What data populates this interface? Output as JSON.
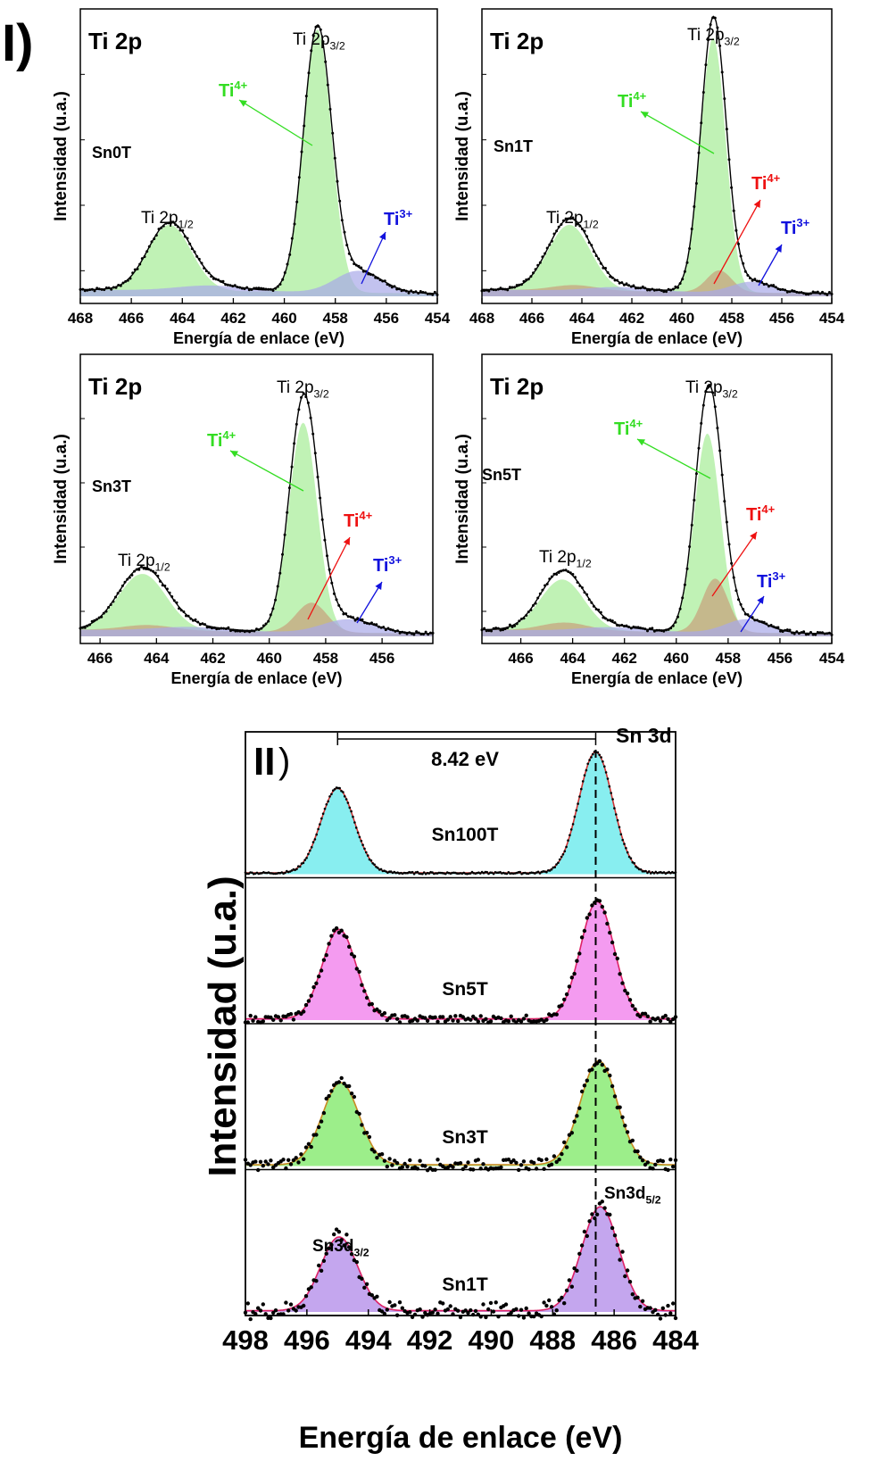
{
  "figure": {
    "section_I_label": "I)",
    "section_II_label": "II",
    "section_II_paren": ")"
  },
  "colors": {
    "ti4_green_fill": "#b5f0a8",
    "ti4_green_text": "#33dd22",
    "ti4_red": "#ee1111",
    "ti4_brown_fill": "#c8a07a",
    "ti3_blue": "#1111dd",
    "ti3_blue_fill": "#a8a8e8",
    "sn100t_fill": "#88eef0",
    "sn5t_fill": "#f49bf0",
    "sn3t_fill": "#9cee8a",
    "sn1t_fill": "#c4a6ee"
  },
  "chart_data": [
    {
      "type": "line",
      "panel": "Sn0T",
      "title": "Ti 2p",
      "sample": "Sn0T",
      "xlabel": "Energía de enlace (eV)",
      "ylabel": "Intensidad (u.a.)",
      "xlim": [
        468,
        454
      ],
      "xticks": [
        468,
        466,
        464,
        462,
        460,
        458,
        456,
        454
      ],
      "ylim": [
        0,
        1.05
      ],
      "peak_labels": [
        "Ti 2p",
        "1/2",
        "Ti 2p",
        "3/2"
      ],
      "components": [
        {
          "name": "Ti4+",
          "centers": [
            464.5,
            458.7
          ],
          "heights": [
            0.24,
            0.96
          ],
          "widths": [
            0.85,
            0.55
          ],
          "color": "ti4_green_fill"
        },
        {
          "name": "Ti3+",
          "centers": [
            462.9,
            457.1
          ],
          "heights": [
            0.02,
            0.08
          ],
          "widths": [
            1.3,
            0.9
          ],
          "color": "ti3_blue_fill"
        }
      ],
      "annotations": [
        {
          "label": "Ti",
          "sup": "4+",
          "color": "ti4_green_text"
        },
        {
          "label": "Ti",
          "sup": "3+",
          "color": "ti3_blue"
        }
      ]
    },
    {
      "type": "line",
      "panel": "Sn1T",
      "title": "Ti 2p",
      "sample": "Sn1T",
      "xlabel": "Energía de enlace (eV)",
      "ylabel": "Intensidad (u.a.)",
      "xlim": [
        468,
        454
      ],
      "xticks": [
        468,
        466,
        464,
        462,
        460,
        458,
        456,
        454
      ],
      "ylim": [
        0,
        1.05
      ],
      "peak_labels": [
        "Ti 2p",
        "1/2",
        "Ti 2p",
        "3/2"
      ],
      "components": [
        {
          "name": "Ti4+",
          "centers": [
            464.5,
            458.75
          ],
          "heights": [
            0.24,
            0.93
          ],
          "widths": [
            0.85,
            0.5
          ],
          "color": "ti4_green_fill"
        },
        {
          "name": "Ti4+ (2)",
          "centers": [
            464.3,
            458.5
          ],
          "heights": [
            0.02,
            0.08
          ],
          "widths": [
            0.9,
            0.5
          ],
          "color": "ti4_brown_fill"
        },
        {
          "name": "Ti3+",
          "centers": [
            462.5,
            457.2
          ],
          "heights": [
            0.015,
            0.04
          ],
          "widths": [
            1.2,
            0.8
          ],
          "color": "ti3_blue_fill"
        }
      ],
      "annotations": [
        {
          "label": "Ti",
          "sup": "4+",
          "color": "ti4_green_text"
        },
        {
          "label": "Ti",
          "sup": "4+",
          "color": "ti4_red"
        },
        {
          "label": "Ti",
          "sup": "3+",
          "color": "ti3_blue"
        }
      ]
    },
    {
      "type": "line",
      "panel": "Sn3T",
      "title": "Ti 2p",
      "sample": "Sn3T",
      "xlabel": "Energía de enlace (eV)",
      "ylabel": "Intensidad (u.a.)",
      "xlim": [
        466.7,
        454.2
      ],
      "xticks": [
        466,
        464,
        462,
        460,
        458,
        456
      ],
      "ylim": [
        0,
        1.05
      ],
      "peak_labels": [
        "Ti 2p",
        "1/2",
        "Ti 2p",
        "3/2"
      ],
      "components": [
        {
          "name": "Ti4+",
          "centers": [
            464.5,
            458.8
          ],
          "heights": [
            0.21,
            0.78
          ],
          "widths": [
            0.85,
            0.5
          ],
          "color": "ti4_green_fill"
        },
        {
          "name": "Ti4+ (2)",
          "centers": [
            464.3,
            458.5
          ],
          "heights": [
            0.02,
            0.11
          ],
          "widths": [
            0.9,
            0.55
          ],
          "color": "ti4_brown_fill"
        },
        {
          "name": "Ti3+",
          "centers": [
            462.8,
            457.2
          ],
          "heights": [
            0.015,
            0.05
          ],
          "widths": [
            1.2,
            0.9
          ],
          "color": "ti3_blue_fill"
        }
      ],
      "annotations": [
        {
          "label": "Ti",
          "sup": "4+",
          "color": "ti4_green_text"
        },
        {
          "label": "Ti",
          "sup": "4+",
          "color": "ti4_red"
        },
        {
          "label": "Ti",
          "sup": "3+",
          "color": "ti3_blue"
        }
      ]
    },
    {
      "type": "line",
      "panel": "Sn5T",
      "title": "Ti 2p",
      "sample": "Sn5T",
      "xlabel": "Energía de enlace (eV)",
      "ylabel": "Intensidad (u.a.)",
      "xlim": [
        467.5,
        454
      ],
      "xticks": [
        466,
        464,
        462,
        460,
        458,
        456,
        454
      ],
      "ylim": [
        0,
        1.05
      ],
      "peak_labels": [
        "Ti 2p",
        "1/2",
        "Ti 2p",
        "3/2"
      ],
      "components": [
        {
          "name": "Ti4+",
          "centers": [
            464.4,
            458.8
          ],
          "heights": [
            0.19,
            0.74
          ],
          "widths": [
            0.85,
            0.5
          ],
          "color": "ti4_green_fill"
        },
        {
          "name": "Ti4+ (2)",
          "centers": [
            464.3,
            458.5
          ],
          "heights": [
            0.03,
            0.2
          ],
          "widths": [
            0.9,
            0.5
          ],
          "color": "ti4_brown_fill"
        },
        {
          "name": "Ti3+",
          "centers": [
            462.5,
            457.3
          ],
          "heights": [
            0.015,
            0.05
          ],
          "widths": [
            1.2,
            0.8
          ],
          "color": "ti3_blue_fill"
        }
      ],
      "annotations": [
        {
          "label": "Ti",
          "sup": "4+",
          "color": "ti4_green_text"
        },
        {
          "label": "Ti",
          "sup": "4+",
          "color": "ti4_red"
        },
        {
          "label": "Ti",
          "sup": "3+",
          "color": "ti3_blue"
        }
      ]
    },
    {
      "type": "line",
      "panel": "Sn 3d",
      "title": "Sn 3d",
      "xlabel": "Energía de enlace (eV)",
      "ylabel": "Intensidad (u.a.)",
      "xlim": [
        498,
        484
      ],
      "xticks": [
        498,
        496,
        494,
        492,
        490,
        488,
        486,
        484
      ],
      "ylim": [
        0,
        1.05
      ],
      "splitting_label": "8.42 eV",
      "splitting": [
        495.0,
        486.6
      ],
      "reference_line_x": 486.6,
      "peak_labels": [
        "Sn3d",
        "3/2",
        "Sn3d",
        "5/2"
      ],
      "series": [
        {
          "name": "Sn100T",
          "centers": [
            495.0,
            486.6
          ],
          "heights": [
            0.7,
            1.0
          ],
          "width": 0.55,
          "color": "sn100t_fill",
          "noise": 0.008
        },
        {
          "name": "Sn5T",
          "centers": [
            494.95,
            486.55
          ],
          "heights": [
            0.74,
            0.97
          ],
          "width": 0.55,
          "color": "sn5t_fill",
          "noise": 0.03
        },
        {
          "name": "Sn3T",
          "centers": [
            494.9,
            486.5
          ],
          "heights": [
            0.68,
            0.86
          ],
          "width": 0.6,
          "color": "sn3t_fill",
          "noise": 0.045
        },
        {
          "name": "Sn1T",
          "centers": [
            494.95,
            486.45
          ],
          "heights": [
            0.61,
            0.86
          ],
          "width": 0.6,
          "color": "sn1t_fill",
          "noise": 0.07
        }
      ]
    }
  ]
}
